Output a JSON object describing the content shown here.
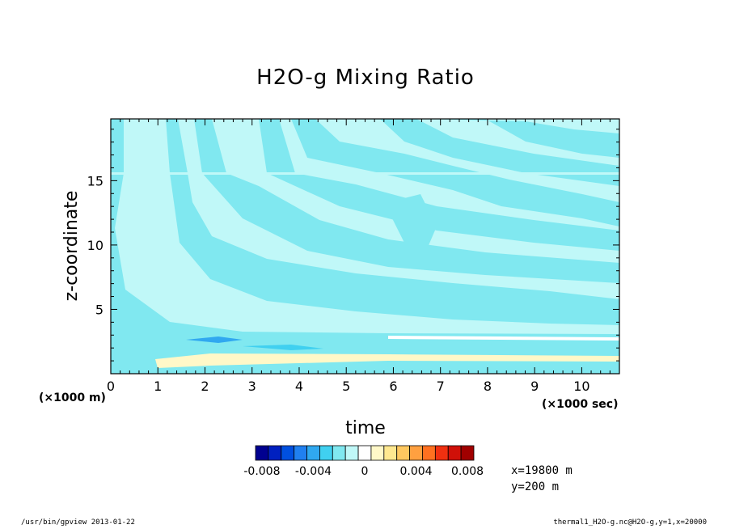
{
  "chart_data": {
    "type": "heatmap",
    "title": "H2O-g Mixing Ratio",
    "xlabel": "time",
    "ylabel": "z-coordinate",
    "x_unit": "(×1000 sec)",
    "y_unit": "(×1000 m)",
    "xlim": [
      0,
      10.8
    ],
    "ylim": [
      0,
      19.8
    ],
    "x_ticks": [
      "0",
      "1",
      "2",
      "3",
      "4",
      "5",
      "6",
      "7",
      "8",
      "9",
      "10"
    ],
    "y_ticks": [
      "5",
      "10",
      "15"
    ],
    "colorbar": {
      "colors": [
        "#000090",
        "#0020c0",
        "#0050e0",
        "#2080f0",
        "#30a8f0",
        "#40d0f0",
        "#80e8f0",
        "#c0f8f8",
        "#ffffff",
        "#fff8c8",
        "#ffe890",
        "#ffc860",
        "#ffa040",
        "#ff7020",
        "#f03010",
        "#d01008",
        "#a00000"
      ],
      "tick_labels": [
        "-0.008",
        "-0.004",
        "0",
        "0.004",
        "0.008"
      ],
      "tick_values": [
        -0.008,
        -0.004,
        0,
        0.004,
        0.008
      ]
    },
    "grid": false
  },
  "info": {
    "x_value": "x=19800 m",
    "y_value": "y=200 m",
    "footer_left": "/usr/bin/gpview  2013-01-22",
    "footer_right": "thermal1_H2O-g.nc@H2O-g,y=1,x=20000"
  }
}
